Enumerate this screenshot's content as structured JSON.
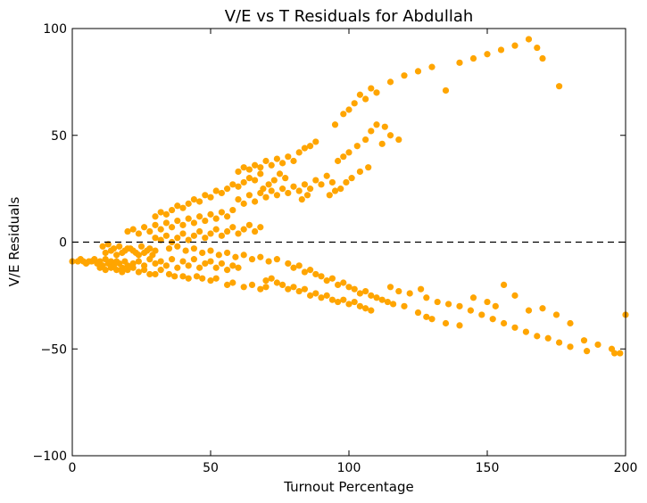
{
  "chart_data": {
    "type": "scatter",
    "title": "V/E vs T Residuals for Abdullah",
    "xlabel": "Turnout Percentage",
    "ylabel": "V/E Residuals",
    "xlim": [
      0,
      200
    ],
    "ylim": [
      -100,
      100
    ],
    "xticks": [
      0,
      50,
      100,
      150,
      200
    ],
    "yticks": [
      -100,
      -50,
      0,
      50,
      100
    ],
    "xtick_labels": [
      "0",
      "50",
      "100",
      "150",
      "200"
    ],
    "ytick_labels": [
      "−100",
      "−50",
      "0",
      "50",
      "100"
    ],
    "reference_line": {
      "y": 0,
      "style": "dashed"
    },
    "grid": false,
    "point_color": "#FFA500",
    "points": [
      [
        0,
        -9
      ],
      [
        2,
        -9
      ],
      [
        3,
        -8
      ],
      [
        4,
        -9
      ],
      [
        5,
        -10
      ],
      [
        6,
        -9
      ],
      [
        7,
        -9
      ],
      [
        8,
        -8
      ],
      [
        9,
        -10
      ],
      [
        10,
        -9
      ],
      [
        11,
        -11
      ],
      [
        12,
        -8
      ],
      [
        13,
        -10
      ],
      [
        14,
        -9
      ],
      [
        15,
        -11
      ],
      [
        16,
        -9
      ],
      [
        17,
        -10
      ],
      [
        18,
        -12
      ],
      [
        19,
        -9
      ],
      [
        20,
        -11
      ],
      [
        10,
        -12
      ],
      [
        12,
        -13
      ],
      [
        14,
        -12
      ],
      [
        16,
        -13
      ],
      [
        18,
        -14
      ],
      [
        20,
        -13
      ],
      [
        22,
        -12
      ],
      [
        24,
        -14
      ],
      [
        26,
        -13
      ],
      [
        28,
        -15
      ],
      [
        30,
        -15
      ],
      [
        32,
        -13
      ],
      [
        35,
        -15
      ],
      [
        37,
        -16
      ],
      [
        40,
        -16
      ],
      [
        42,
        -17
      ],
      [
        45,
        -16
      ],
      [
        47,
        -17
      ],
      [
        50,
        -18
      ],
      [
        52,
        -17
      ],
      [
        12,
        -5
      ],
      [
        14,
        -4
      ],
      [
        16,
        -6
      ],
      [
        18,
        -5
      ],
      [
        20,
        -3
      ],
      [
        22,
        -4
      ],
      [
        24,
        -6
      ],
      [
        26,
        -5
      ],
      [
        28,
        -3
      ],
      [
        30,
        -4
      ],
      [
        11,
        -2
      ],
      [
        13,
        -1
      ],
      [
        15,
        -3
      ],
      [
        17,
        -2
      ],
      [
        19,
        -4
      ],
      [
        21,
        -3
      ],
      [
        23,
        -5
      ],
      [
        25,
        -2
      ],
      [
        27,
        -4
      ],
      [
        29,
        -6
      ],
      [
        22,
        -10
      ],
      [
        24,
        -9
      ],
      [
        26,
        -11
      ],
      [
        28,
        -8
      ],
      [
        30,
        -10
      ],
      [
        32,
        -9
      ],
      [
        34,
        -11
      ],
      [
        36,
        -8
      ],
      [
        38,
        -12
      ],
      [
        40,
        -9
      ],
      [
        42,
        -11
      ],
      [
        44,
        -8
      ],
      [
        46,
        -12
      ],
      [
        48,
        -10
      ],
      [
        50,
        -9
      ],
      [
        52,
        -12
      ],
      [
        54,
        -10
      ],
      [
        56,
        -13
      ],
      [
        58,
        -11
      ],
      [
        60,
        -12
      ],
      [
        20,
        5
      ],
      [
        22,
        6
      ],
      [
        24,
        4
      ],
      [
        26,
        7
      ],
      [
        28,
        5
      ],
      [
        30,
        8
      ],
      [
        32,
        6
      ],
      [
        34,
        9
      ],
      [
        36,
        7
      ],
      [
        38,
        10
      ],
      [
        40,
        8
      ],
      [
        42,
        11
      ],
      [
        44,
        9
      ],
      [
        46,
        12
      ],
      [
        48,
        10
      ],
      [
        50,
        13
      ],
      [
        52,
        11
      ],
      [
        54,
        14
      ],
      [
        56,
        12
      ],
      [
        58,
        15
      ],
      [
        30,
        12
      ],
      [
        32,
        14
      ],
      [
        34,
        13
      ],
      [
        36,
        15
      ],
      [
        38,
        17
      ],
      [
        40,
        16
      ],
      [
        42,
        18
      ],
      [
        44,
        20
      ],
      [
        46,
        19
      ],
      [
        48,
        22
      ],
      [
        50,
        21
      ],
      [
        52,
        24
      ],
      [
        54,
        23
      ],
      [
        56,
        25
      ],
      [
        58,
        27
      ],
      [
        60,
        26
      ],
      [
        62,
        28
      ],
      [
        64,
        30
      ],
      [
        66,
        29
      ],
      [
        68,
        32
      ],
      [
        30,
        2
      ],
      [
        32,
        1
      ],
      [
        34,
        3
      ],
      [
        36,
        0
      ],
      [
        38,
        2
      ],
      [
        40,
        4
      ],
      [
        42,
        1
      ],
      [
        44,
        3
      ],
      [
        46,
        5
      ],
      [
        48,
        2
      ],
      [
        50,
        4
      ],
      [
        52,
        6
      ],
      [
        54,
        3
      ],
      [
        56,
        5
      ],
      [
        58,
        7
      ],
      [
        60,
        4
      ],
      [
        62,
        6
      ],
      [
        64,
        8
      ],
      [
        66,
        5
      ],
      [
        68,
        7
      ],
      [
        35,
        -3
      ],
      [
        38,
        -2
      ],
      [
        41,
        -4
      ],
      [
        44,
        -3
      ],
      [
        47,
        -5
      ],
      [
        50,
        -4
      ],
      [
        53,
        -6
      ],
      [
        56,
        -5
      ],
      [
        59,
        -7
      ],
      [
        62,
        -6
      ],
      [
        65,
        -8
      ],
      [
        68,
        -7
      ],
      [
        71,
        -9
      ],
      [
        74,
        -8
      ],
      [
        56,
        -20
      ],
      [
        58,
        -19
      ],
      [
        62,
        -21
      ],
      [
        65,
        -20
      ],
      [
        68,
        -22
      ],
      [
        70,
        -21
      ],
      [
        60,
        33
      ],
      [
        62,
        35
      ],
      [
        64,
        34
      ],
      [
        66,
        36
      ],
      [
        68,
        35
      ],
      [
        70,
        38
      ],
      [
        72,
        36
      ],
      [
        74,
        39
      ],
      [
        76,
        37
      ],
      [
        78,
        40
      ],
      [
        80,
        38
      ],
      [
        82,
        42
      ],
      [
        84,
        44
      ],
      [
        86,
        45
      ],
      [
        88,
        47
      ],
      [
        75,
        32
      ],
      [
        77,
        30
      ],
      [
        73,
        29
      ],
      [
        71,
        27
      ],
      [
        69,
        25
      ],
      [
        60,
        20
      ],
      [
        62,
        18
      ],
      [
        64,
        22
      ],
      [
        66,
        19
      ],
      [
        68,
        23
      ],
      [
        70,
        21
      ],
      [
        72,
        24
      ],
      [
        74,
        22
      ],
      [
        76,
        25
      ],
      [
        78,
        23
      ],
      [
        80,
        26
      ],
      [
        82,
        24
      ],
      [
        84,
        27
      ],
      [
        86,
        25
      ],
      [
        88,
        29
      ],
      [
        90,
        27
      ],
      [
        92,
        31
      ],
      [
        94,
        28
      ],
      [
        85,
        22
      ],
      [
        83,
        20
      ],
      [
        70,
        -18
      ],
      [
        72,
        -17
      ],
      [
        74,
        -19
      ],
      [
        76,
        -20
      ],
      [
        78,
        -22
      ],
      [
        80,
        -21
      ],
      [
        82,
        -23
      ],
      [
        84,
        -22
      ],
      [
        86,
        -25
      ],
      [
        88,
        -24
      ],
      [
        90,
        -26
      ],
      [
        92,
        -25
      ],
      [
        94,
        -27
      ],
      [
        96,
        -28
      ],
      [
        98,
        -27
      ],
      [
        100,
        -29
      ],
      [
        102,
        -28
      ],
      [
        104,
        -30
      ],
      [
        106,
        -31
      ],
      [
        108,
        -32
      ],
      [
        78,
        -10
      ],
      [
        80,
        -12
      ],
      [
        82,
        -11
      ],
      [
        84,
        -14
      ],
      [
        86,
        -13
      ],
      [
        88,
        -15
      ],
      [
        90,
        -16
      ],
      [
        92,
        -18
      ],
      [
        94,
        -17
      ],
      [
        96,
        -20
      ],
      [
        98,
        -19
      ],
      [
        100,
        -21
      ],
      [
        102,
        -22
      ],
      [
        104,
        -24
      ],
      [
        106,
        -23
      ],
      [
        108,
        -25
      ],
      [
        110,
        -26
      ],
      [
        112,
        -27
      ],
      [
        114,
        -28
      ],
      [
        116,
        -29
      ],
      [
        95,
        55
      ],
      [
        98,
        60
      ],
      [
        100,
        62
      ],
      [
        102,
        65
      ],
      [
        104,
        69
      ],
      [
        106,
        67
      ],
      [
        108,
        72
      ],
      [
        110,
        70
      ],
      [
        115,
        75
      ],
      [
        120,
        78
      ],
      [
        125,
        80
      ],
      [
        130,
        82
      ],
      [
        135,
        71
      ],
      [
        140,
        84
      ],
      [
        145,
        86
      ],
      [
        150,
        88
      ],
      [
        155,
        90
      ],
      [
        160,
        92
      ],
      [
        165,
        95
      ],
      [
        168,
        91
      ],
      [
        170,
        86
      ],
      [
        176,
        73
      ],
      [
        110,
        55
      ],
      [
        113,
        54
      ],
      [
        108,
        52
      ],
      [
        106,
        48
      ],
      [
        103,
        45
      ],
      [
        100,
        42
      ],
      [
        98,
        40
      ],
      [
        96,
        38
      ],
      [
        115,
        50
      ],
      [
        118,
        48
      ],
      [
        112,
        46
      ],
      [
        107,
        35
      ],
      [
        104,
        33
      ],
      [
        101,
        30
      ],
      [
        99,
        28
      ],
      [
        97,
        25
      ],
      [
        95,
        24
      ],
      [
        93,
        22
      ],
      [
        120,
        -30
      ],
      [
        125,
        -33
      ],
      [
        128,
        -35
      ],
      [
        130,
        -36
      ],
      [
        135,
        -38
      ],
      [
        140,
        -39
      ],
      [
        145,
        -26
      ],
      [
        150,
        -28
      ],
      [
        153,
        -30
      ],
      [
        156,
        -20
      ],
      [
        160,
        -25
      ],
      [
        165,
        -32
      ],
      [
        170,
        -31
      ],
      [
        175,
        -34
      ],
      [
        180,
        -38
      ],
      [
        185,
        -46
      ],
      [
        190,
        -48
      ],
      [
        195,
        -50
      ],
      [
        198,
        -52
      ],
      [
        200,
        -34
      ],
      [
        115,
        -21
      ],
      [
        118,
        -23
      ],
      [
        122,
        -24
      ],
      [
        126,
        -22
      ],
      [
        128,
        -26
      ],
      [
        132,
        -28
      ],
      [
        136,
        -29
      ],
      [
        140,
        -30
      ],
      [
        144,
        -32
      ],
      [
        148,
        -34
      ],
      [
        152,
        -36
      ],
      [
        156,
        -38
      ],
      [
        160,
        -40
      ],
      [
        164,
        -42
      ],
      [
        168,
        -44
      ],
      [
        172,
        -45
      ],
      [
        176,
        -47
      ],
      [
        180,
        -49
      ],
      [
        186,
        -51
      ],
      [
        196,
        -52
      ]
    ]
  }
}
